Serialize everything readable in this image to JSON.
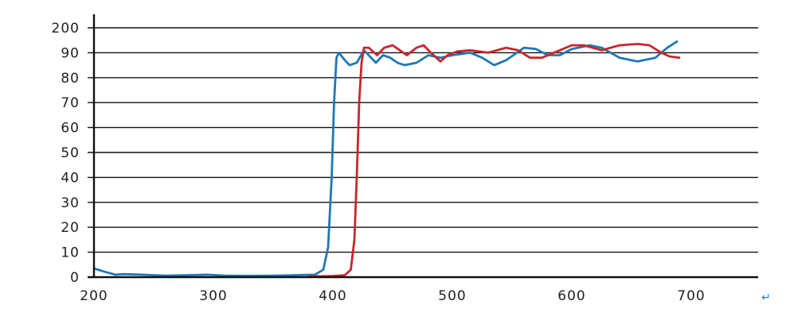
{
  "chart_data": {
    "type": "line",
    "title": "",
    "xlabel": "",
    "ylabel": "",
    "xlim": [
      200,
      700
    ],
    "x_ticks": [
      200,
      300,
      400,
      500,
      600,
      700
    ],
    "y_tick_labels": [
      "0",
      "10",
      "20",
      "30",
      "40",
      "50",
      "60",
      "70",
      "80",
      "90",
      "200"
    ],
    "grid": true,
    "legend": "none",
    "series": [
      {
        "color": "#1f78b4",
        "points": [
          [
            200,
            3.5
          ],
          [
            210,
            2
          ],
          [
            218,
            1
          ],
          [
            225,
            1.2
          ],
          [
            240,
            1
          ],
          [
            260,
            0.6
          ],
          [
            280,
            0.8
          ],
          [
            295,
            1
          ],
          [
            310,
            0.6
          ],
          [
            330,
            0.5
          ],
          [
            350,
            0.6
          ],
          [
            370,
            0.8
          ],
          [
            385,
            1
          ],
          [
            392,
            3
          ],
          [
            396,
            12
          ],
          [
            399,
            40
          ],
          [
            401,
            70
          ],
          [
            403,
            88
          ],
          [
            405,
            90
          ],
          [
            410,
            87
          ],
          [
            414,
            85
          ],
          [
            420,
            86
          ],
          [
            426,
            91
          ],
          [
            432,
            88
          ],
          [
            436,
            86
          ],
          [
            442,
            89
          ],
          [
            448,
            88
          ],
          [
            454,
            86
          ],
          [
            460,
            85
          ],
          [
            470,
            86
          ],
          [
            480,
            89
          ],
          [
            490,
            88
          ],
          [
            500,
            89
          ],
          [
            515,
            90
          ],
          [
            525,
            88
          ],
          [
            535,
            85
          ],
          [
            545,
            87
          ],
          [
            560,
            92
          ],
          [
            570,
            91.5
          ],
          [
            580,
            89
          ],
          [
            590,
            89
          ],
          [
            600,
            91.5
          ],
          [
            615,
            93
          ],
          [
            625,
            92
          ],
          [
            640,
            88
          ],
          [
            655,
            86.5
          ],
          [
            670,
            88
          ],
          [
            680,
            92
          ],
          [
            688,
            94.5
          ]
        ]
      },
      {
        "color": "#c8262b",
        "points": [
          [
            380,
            0.3
          ],
          [
            400,
            0.4
          ],
          [
            410,
            0.8
          ],
          [
            415,
            3
          ],
          [
            418,
            15
          ],
          [
            420,
            40
          ],
          [
            422,
            70
          ],
          [
            424,
            86
          ],
          [
            426,
            92
          ],
          [
            430,
            92
          ],
          [
            437,
            89
          ],
          [
            443,
            92
          ],
          [
            450,
            93
          ],
          [
            456,
            91
          ],
          [
            462,
            89
          ],
          [
            470,
            92
          ],
          [
            476,
            93
          ],
          [
            482,
            90
          ],
          [
            490,
            86.5
          ],
          [
            496,
            89
          ],
          [
            504,
            90.5
          ],
          [
            515,
            91
          ],
          [
            530,
            90
          ],
          [
            545,
            92
          ],
          [
            555,
            91
          ],
          [
            565,
            88
          ],
          [
            575,
            88
          ],
          [
            590,
            91
          ],
          [
            600,
            93
          ],
          [
            610,
            93
          ],
          [
            625,
            91
          ],
          [
            640,
            93
          ],
          [
            655,
            93.5
          ],
          [
            665,
            93
          ],
          [
            675,
            90
          ],
          [
            682,
            88.5
          ],
          [
            690,
            88
          ]
        ]
      }
    ],
    "annotation": "↵"
  }
}
